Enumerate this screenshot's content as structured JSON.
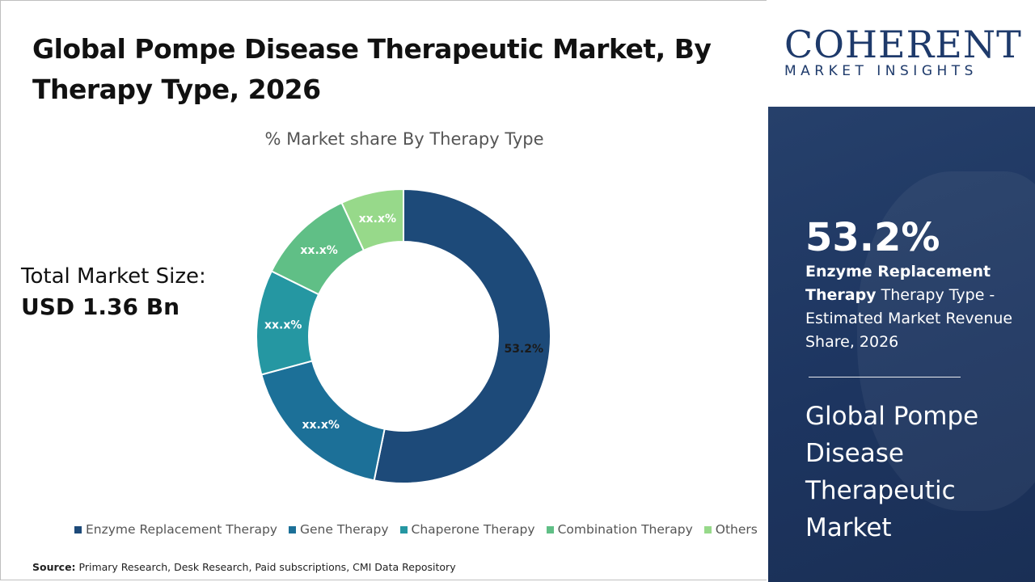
{
  "title": "Global Pompe Disease Therapeutic Market, By Therapy Type, 2026",
  "total_market": {
    "label": "Total Market Size:",
    "value": "USD 1.36 Bn"
  },
  "source": {
    "label": "Source:",
    "text": "Primary Research, Desk Research, Paid subscriptions, CMI Data Repository"
  },
  "logo": {
    "name": "COHERENT",
    "tagline": "MARKET INSIGHTS"
  },
  "sidebar": {
    "highlight_value": "53.2%",
    "highlight_bold": "Enzyme Replacement Therapy",
    "highlight_text": " Therapy Type - Estimated Market Revenue Share, 2026",
    "market_name": "Global Pompe Disease Therapeutic Market"
  },
  "chart_data": {
    "type": "pie",
    "title": "% Market share By Therapy Type",
    "donut": true,
    "categories": [
      "Enzyme Replacement Therapy",
      "Gene Therapy",
      "Chaperone Therapy",
      "Combination Therapy",
      "Others"
    ],
    "values": [
      53.2,
      17.6,
      11.5,
      10.8,
      6.9
    ],
    "data_labels": [
      "53.2%",
      "xx.x%",
      "xx.x%",
      "xx.x%",
      "xx.x%"
    ],
    "colors": [
      "#1d4a79",
      "#1c7098",
      "#2597a2",
      "#60bf86",
      "#97d98a"
    ],
    "legend_position": "bottom"
  }
}
